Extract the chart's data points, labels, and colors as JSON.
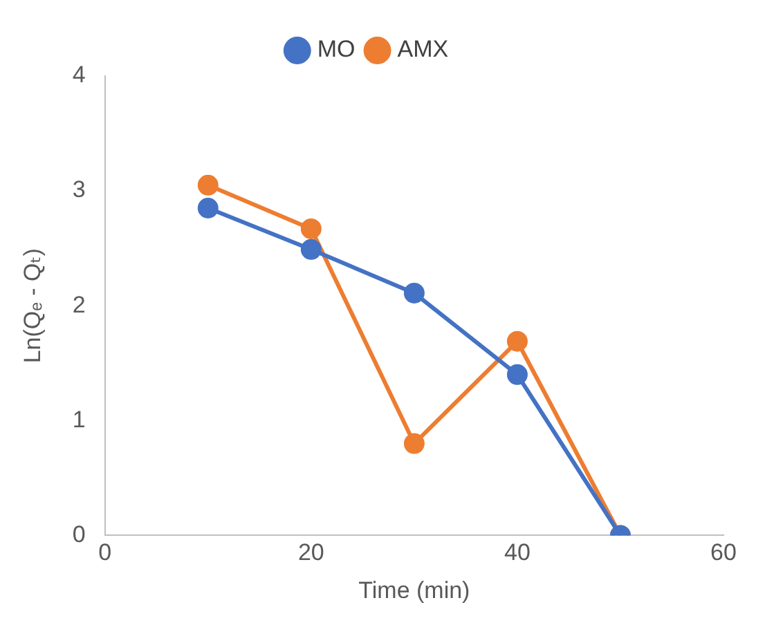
{
  "chart_data": {
    "type": "line",
    "xlabel": "Time (min)",
    "ylabel": "Ln(Qₑ - Qₜ)",
    "x": [
      10,
      20,
      30,
      40,
      50
    ],
    "series": [
      {
        "name": "MO",
        "color": "#4472c4",
        "values": [
          2.85,
          2.49,
          2.11,
          1.4,
          0
        ]
      },
      {
        "name": "AMX",
        "color": "#ed7d31",
        "values": [
          3.05,
          2.67,
          0.8,
          1.69,
          0
        ]
      }
    ],
    "xlim": [
      0,
      60
    ],
    "xticks": [
      0,
      20,
      40,
      60
    ],
    "ylim": [
      0,
      4
    ],
    "yticks": [
      0,
      1,
      2,
      3,
      4
    ],
    "grid": false,
    "legend": "top",
    "marker": "circle",
    "line_style": "solid"
  }
}
